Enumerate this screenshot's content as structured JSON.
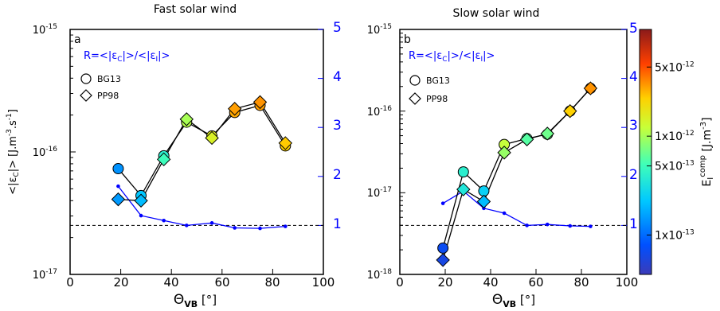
{
  "chart_data": [
    {
      "type": "line",
      "panel_label": "a",
      "title": "Fast solar wind",
      "xlabel_main": "Θ",
      "xlabel_sub": "VB",
      "xlabel_unit": " [°]",
      "ylabel": "<|ε",
      "ylabel_sub": "C",
      "ylabel_rest": "|> [J.m",
      "ylabel_sup1": "-3",
      "ylabel_mid": ".s",
      "ylabel_sup2": "-1",
      "ylabel_end": "]",
      "xlim": [
        0,
        100
      ],
      "xticks": [
        "0",
        "20",
        "40",
        "60",
        "80",
        "100"
      ],
      "y_scale": "log",
      "ylim": [
        1e-17,
        1e-15
      ],
      "yticks_left": [
        "10",
        "10",
        "10"
      ],
      "yticks_left_exp": [
        "-17",
        "-16",
        "-15"
      ],
      "ylim_right": [
        0,
        5
      ],
      "yticks_right": [
        "1",
        "2",
        "3",
        "4",
        "5"
      ],
      "ratio_label": "R=<|ε",
      "ratio_label_sub1": "C",
      "ratio_label_mid": "|>/<|ε",
      "ratio_label_sub2": "I",
      "ratio_label_end": "|>",
      "legend": [
        "BG13",
        "PP98"
      ],
      "series": [
        {
          "name": "BG13",
          "marker": "circle",
          "x": [
            19,
            28,
            37,
            46,
            56,
            65,
            75,
            85
          ],
          "y": [
            7.3e-17,
            4.4e-17,
            9.3e-17,
            1.75e-16,
            1.35e-16,
            2.1e-16,
            2.4e-16,
            1.12e-16
          ],
          "ecomp": [
            1.4e-13,
            2.2e-13,
            4e-13,
            1.1e-12,
            1.6e-12,
            3e-12,
            3.2e-12,
            2.4e-12
          ]
        },
        {
          "name": "PP98",
          "marker": "diamond",
          "x": [
            19,
            28,
            37,
            46,
            56,
            65,
            75,
            85
          ],
          "y": [
            4.1e-17,
            4e-17,
            8.7e-17,
            1.85e-16,
            1.3e-16,
            2.25e-16,
            2.55e-16,
            1.18e-16
          ],
          "ecomp": [
            1.5e-13,
            2e-13,
            5e-13,
            1e-12,
            1.5e-12,
            3.2e-12,
            3.4e-12,
            2.5e-12
          ]
        },
        {
          "name": "R",
          "axis": "right",
          "x": [
            19,
            28,
            37,
            46,
            56,
            65,
            75,
            85
          ],
          "y": [
            1.8,
            1.2,
            1.1,
            1.0,
            1.05,
            0.95,
            0.94,
            0.98
          ]
        }
      ],
      "reference_line_right": 1.0
    },
    {
      "type": "line",
      "panel_label": "b",
      "title": "Slow solar wind",
      "xlabel_main": "Θ",
      "xlabel_sub": "VB",
      "xlabel_unit": " [°]",
      "xlim": [
        0,
        100
      ],
      "xticks": [
        "0",
        "20",
        "40",
        "60",
        "80",
        "100"
      ],
      "y_scale": "log",
      "ylim": [
        1e-18,
        1e-15
      ],
      "yticks_left": [
        "10",
        "10",
        "10",
        "10"
      ],
      "yticks_left_exp": [
        "-18",
        "-17",
        "-16",
        "-15"
      ],
      "ylim_right": [
        0,
        5
      ],
      "yticks_right": [
        "1",
        "2",
        "3",
        "4",
        "5"
      ],
      "ratio_label": "R=<|ε",
      "ratio_label_sub1": "C",
      "ratio_label_mid": "|>/<|ε",
      "ratio_label_sub2": "I",
      "ratio_label_end": "|>",
      "legend": [
        "BG13",
        "PP98"
      ],
      "series": [
        {
          "name": "BG13",
          "marker": "circle",
          "x": [
            19,
            28,
            37,
            46,
            56,
            65,
            75,
            84
          ],
          "y": [
            2.1e-18,
            1.8e-17,
            1.05e-17,
            3.9e-17,
            4.6e-17,
            5.2e-17,
            1e-16,
            1.9e-16
          ],
          "ecomp": [
            7e-14,
            4e-13,
            2.5e-13,
            1.2e-12,
            6e-13,
            7e-13,
            2.4e-12,
            3.4e-12
          ]
        },
        {
          "name": "PP98",
          "marker": "diamond",
          "x": [
            19,
            28,
            37,
            46,
            56,
            65,
            75,
            84
          ],
          "y": [
            1.5e-18,
            1.1e-17,
            7.8e-18,
            3.1e-17,
            4.5e-17,
            5.3e-17,
            1e-16,
            1.9e-16
          ],
          "ecomp": [
            6e-14,
            3.5e-13,
            2e-13,
            9e-13,
            6e-13,
            7e-13,
            2.4e-12,
            3.4e-12
          ]
        },
        {
          "name": "R",
          "axis": "right",
          "x": [
            19,
            28,
            37,
            46,
            56,
            65,
            75,
            84
          ],
          "y": [
            1.45,
            1.7,
            1.35,
            1.25,
            1.0,
            1.02,
            0.99,
            0.98
          ]
        }
      ],
      "reference_line_right": 1.0,
      "colorbar": {
        "scale": "log",
        "range": [
          4e-14,
          1.2e-11
        ],
        "colormap": "jet",
        "ticks": [
          "1x10",
          "5x10",
          "1x10",
          "5x10"
        ],
        "ticks_exp": [
          "-13",
          "-13",
          "-12",
          "-12"
        ],
        "tick_values": [
          1e-13,
          5e-13,
          1e-12,
          5e-12
        ],
        "label": "E",
        "label_sub": "I",
        "label_sup": "comp",
        "label_rest": " [J.m",
        "label_sup2": "-3",
        "label_end": "]"
      }
    }
  ],
  "colors": {
    "ratio_line": "#0000ff",
    "right_axis": "#0000ff",
    "axis": "#000000",
    "reference_line": "#000000"
  }
}
